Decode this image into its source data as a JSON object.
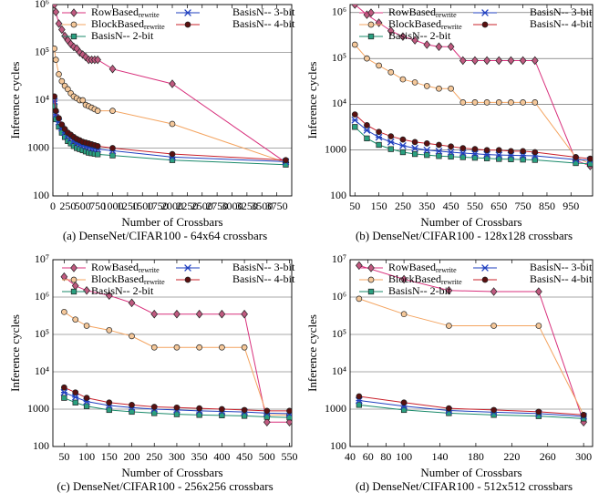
{
  "chart_data": [
    {
      "type": "line",
      "title": "(a) DenseNet/CIFAR100 - 64x64 crossbars",
      "x_label": "Number of Crossbars",
      "y_label": "Inference cycles",
      "log_y": true,
      "grid": "y",
      "x": [
        25,
        50,
        100,
        150,
        200,
        250,
        300,
        350,
        400,
        450,
        500,
        550,
        600,
        650,
        700,
        750,
        1000,
        2000,
        3900
      ],
      "xlim": [
        0,
        4000
      ],
      "xticks": [
        0,
        250,
        500,
        750,
        1000,
        1250,
        1500,
        1750,
        2000,
        2250,
        2500,
        2750,
        3000,
        3250,
        3500,
        3750
      ],
      "ylim": [
        100,
        1000000
      ],
      "yticks": [
        100,
        1000,
        {
          "value": 10000,
          "label": "10⁴"
        },
        {
          "value": 100000,
          "label": "10⁵"
        },
        {
          "value": 1000000,
          "label": "10⁶"
        }
      ],
      "series": [
        {
          "name": "RowBased",
          "name_sub": "rewrite",
          "color": "#d8307c",
          "marker": "diamond",
          "marker_color": "#c05a80",
          "values": [
            1000000,
            700000,
            400000,
            300000,
            220000,
            180000,
            150000,
            130000,
            120000,
            100000,
            90000,
            80000,
            70000,
            70000,
            70000,
            70000,
            45000,
            22000,
            500
          ]
        },
        {
          "name": "BlockBased",
          "name_sub": "rewrite",
          "color": "#f4a460",
          "marker": "circle",
          "marker_color": "#f5c89a",
          "values": [
            120000,
            70000,
            35000,
            25000,
            20000,
            17000,
            14000,
            12000,
            11000,
            10000,
            10000,
            8000,
            7500,
            7000,
            6500,
            6000,
            6000,
            3200,
            500
          ]
        },
        {
          "name": "BasisN-- 2-bit",
          "color": "#1a8a6a",
          "marker": "square",
          "marker_color": "#2aa080",
          "values": [
            7500,
            4000,
            2800,
            2100,
            1700,
            1400,
            1250,
            1100,
            1000,
            950,
            900,
            850,
            800,
            780,
            760,
            740,
            700,
            560,
            450
          ]
        },
        {
          "name": "BasisN-- 3-bit",
          "color": "#1f3fbf",
          "marker": "star",
          "marker_color": "#1f3fbf",
          "values": [
            9500,
            5000,
            3500,
            2600,
            2100,
            1800,
            1600,
            1400,
            1300,
            1200,
            1150,
            1100,
            1050,
            1000,
            980,
            950,
            880,
            650,
            520
          ]
        },
        {
          "name": "BasisN-- 4-bit",
          "color": "#c8202a",
          "marker": "circle",
          "marker_color": "#5a1010",
          "values": [
            12000,
            6000,
            4200,
            3100,
            2500,
            2100,
            1900,
            1700,
            1550,
            1450,
            1350,
            1300,
            1250,
            1200,
            1150,
            1100,
            1000,
            750,
            560
          ]
        }
      ]
    },
    {
      "type": "line",
      "title": "(b) DenseNet/CIFAR100 - 128x128 crossbars",
      "x_label": "Number of Crossbars",
      "y_label": "Inference cycles",
      "log_y": true,
      "grid": "y",
      "x": [
        50,
        100,
        150,
        200,
        250,
        300,
        350,
        400,
        450,
        500,
        550,
        600,
        650,
        700,
        750,
        800,
        970,
        1030
      ],
      "xlim": [
        30,
        1040
      ],
      "xticks": [
        50,
        150,
        250,
        350,
        450,
        550,
        650,
        750,
        850,
        950
      ],
      "ylim": [
        100,
        1500000
      ],
      "yticks": [
        100,
        1000,
        {
          "value": 10000,
          "label": "10⁴"
        },
        {
          "value": 100000,
          "label": "10⁵"
        },
        {
          "value": 1000000,
          "label": "10⁶"
        }
      ],
      "series": [
        {
          "name": "RowBased",
          "name_sub": "rewrite",
          "color": "#d8307c",
          "marker": "diamond",
          "marker_color": "#c05a80",
          "values": [
            1500000,
            900000,
            600000,
            400000,
            300000,
            250000,
            200000,
            180000,
            180000,
            90000,
            90000,
            90000,
            90000,
            90000,
            90000,
            90000,
            600,
            450
          ]
        },
        {
          "name": "BlockBased",
          "name_sub": "rewrite",
          "color": "#f4a460",
          "marker": "circle",
          "marker_color": "#f5c89a",
          "values": [
            200000,
            100000,
            70000,
            50000,
            35000,
            30000,
            25000,
            22000,
            22000,
            11000,
            11000,
            11000,
            11000,
            11000,
            11000,
            11000,
            700,
            500
          ]
        },
        {
          "name": "BasisN-- 2-bit",
          "color": "#1a8a6a",
          "marker": "square",
          "marker_color": "#2aa080",
          "values": [
            3200,
            1800,
            1300,
            1050,
            900,
            820,
            780,
            740,
            720,
            700,
            680,
            660,
            640,
            630,
            620,
            610,
            520,
            500
          ]
        },
        {
          "name": "BasisN-- 3-bit",
          "color": "#1f3fbf",
          "marker": "star",
          "marker_color": "#1f3fbf",
          "values": [
            4500,
            2700,
            1900,
            1500,
            1250,
            1100,
            1000,
            950,
            900,
            860,
            830,
            800,
            780,
            770,
            760,
            750,
            620,
            600
          ]
        },
        {
          "name": "BasisN-- 4-bit",
          "color": "#c8202a",
          "marker": "circle",
          "marker_color": "#5a1010",
          "values": [
            6000,
            3500,
            2500,
            2000,
            1700,
            1500,
            1400,
            1300,
            1200,
            1100,
            1050,
            1000,
            1000,
            950,
            950,
            900,
            700,
            650
          ]
        }
      ]
    },
    {
      "type": "line",
      "title": "(c) DenseNet/CIFAR100 - 256x256 crossbars",
      "x_label": "Number of Crossbars",
      "y_label": "Inference cycles",
      "log_y": true,
      "grid": "y",
      "x": [
        50,
        75,
        100,
        150,
        200,
        250,
        300,
        350,
        400,
        450,
        500,
        550
      ],
      "xlim": [
        25,
        555
      ],
      "xticks": [
        50,
        100,
        150,
        200,
        250,
        300,
        350,
        400,
        450,
        500,
        550
      ],
      "ylim": [
        100,
        10000000
      ],
      "yticks": [
        100,
        1000,
        {
          "value": 10000,
          "label": "10⁴"
        },
        {
          "value": 100000,
          "label": "10⁵"
        },
        {
          "value": 1000000,
          "label": "10⁶"
        },
        {
          "value": 10000000,
          "label": "10⁷"
        }
      ],
      "series": [
        {
          "name": "RowBased",
          "name_sub": "rewrite",
          "color": "#d8307c",
          "marker": "diamond",
          "marker_color": "#c05a80",
          "values": [
            3500000,
            2000000,
            1500000,
            1100000,
            700000,
            350000,
            350000,
            350000,
            350000,
            350000,
            450,
            450
          ]
        },
        {
          "name": "BlockBased",
          "name_sub": "rewrite",
          "color": "#f4a460",
          "marker": "circle",
          "marker_color": "#f5c89a",
          "values": [
            400000,
            250000,
            170000,
            130000,
            90000,
            45000,
            45000,
            45000,
            45000,
            45000,
            700,
            700
          ]
        },
        {
          "name": "BasisN-- 2-bit",
          "color": "#1a8a6a",
          "marker": "square",
          "marker_color": "#2aa080",
          "values": [
            2000,
            1500,
            1200,
            950,
            850,
            780,
            730,
            700,
            680,
            660,
            620,
            600
          ]
        },
        {
          "name": "BasisN-- 3-bit",
          "color": "#1f3fbf",
          "marker": "star",
          "marker_color": "#1f3fbf",
          "values": [
            2800,
            2100,
            1600,
            1250,
            1100,
            1000,
            950,
            900,
            870,
            840,
            780,
            760
          ]
        },
        {
          "name": "BasisN-- 4-bit",
          "color": "#c8202a",
          "marker": "circle",
          "marker_color": "#5a1010",
          "values": [
            3800,
            2800,
            2000,
            1500,
            1300,
            1150,
            1100,
            1050,
            1000,
            950,
            900,
            900
          ]
        }
      ]
    },
    {
      "type": "line",
      "title": "(d) DenseNet/CIFAR100 - 512x512 crossbars",
      "x_label": "Number of Crossbars",
      "y_label": "Inference cycles",
      "log_y": true,
      "grid": "y",
      "x": [
        50,
        100,
        150,
        200,
        250,
        300
      ],
      "xlim": [
        40,
        310
      ],
      "xticks": [
        40,
        60,
        80,
        100,
        140,
        180,
        220,
        260,
        300
      ],
      "ylim": [
        100,
        10000000
      ],
      "yticks": [
        100,
        1000,
        {
          "value": 10000,
          "label": "10⁴"
        },
        {
          "value": 100000,
          "label": "10⁵"
        },
        {
          "value": 1000000,
          "label": "10⁶"
        },
        {
          "value": 10000000,
          "label": "10⁷"
        }
      ],
      "series": [
        {
          "name": "RowBased",
          "name_sub": "rewrite",
          "color": "#d8307c",
          "marker": "diamond",
          "marker_color": "#c05a80",
          "values": [
            7000000,
            3000000,
            1500000,
            1400000,
            1400000,
            450
          ]
        },
        {
          "name": "BlockBased",
          "name_sub": "rewrite",
          "color": "#f4a460",
          "marker": "circle",
          "marker_color": "#f5c89a",
          "values": [
            900000,
            350000,
            170000,
            170000,
            170000,
            700
          ]
        },
        {
          "name": "BasisN-- 2-bit",
          "color": "#1a8a6a",
          "marker": "square",
          "marker_color": "#2aa080",
          "values": [
            1300,
            950,
            780,
            700,
            650,
            560
          ]
        },
        {
          "name": "BasisN-- 3-bit",
          "color": "#1f3fbf",
          "marker": "star",
          "marker_color": "#1f3fbf",
          "values": [
            1700,
            1200,
            920,
            830,
            760,
            640
          ]
        },
        {
          "name": "BasisN-- 4-bit",
          "color": "#c8202a",
          "marker": "circle",
          "marker_color": "#5a1010",
          "values": [
            2200,
            1500,
            1050,
            950,
            850,
            700
          ]
        }
      ]
    }
  ]
}
